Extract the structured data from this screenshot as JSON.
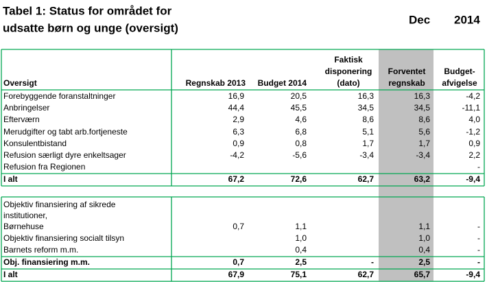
{
  "header": {
    "title": [
      "Tabel 1: Status for området for",
      "udsatte børn og unge (oversigt)"
    ],
    "month": "Dec",
    "year": "2014"
  },
  "table": {
    "columns": [
      [
        "Oversigt"
      ],
      [
        "Regnskab 2013"
      ],
      [
        "Budget 2014"
      ],
      [
        "Faktisk",
        "disponering",
        "(dato)"
      ],
      [
        "Forventet",
        "regnskab"
      ],
      [
        "Budget-",
        "afvigelse"
      ]
    ],
    "sections": [
      {
        "rows": [
          {
            "label": [
              "Forebyggende foranstaltninger"
            ],
            "values": [
              "16,9",
              "20,5",
              "16,3",
              "16,3",
              "-4,2"
            ]
          },
          {
            "label": [
              "Anbringelser"
            ],
            "values": [
              "44,4",
              "45,5",
              "34,5",
              "34,5",
              "-11,1"
            ]
          },
          {
            "label": [
              "Efterværn"
            ],
            "values": [
              "2,9",
              "4,6",
              "8,6",
              "8,6",
              "4,0"
            ]
          },
          {
            "label": [
              "Merudgifter og tabt arb.fortjeneste"
            ],
            "values": [
              "6,3",
              "6,8",
              "5,1",
              "5,6",
              "-1,2"
            ]
          },
          {
            "label": [
              "Konsulentbistand"
            ],
            "values": [
              "0,9",
              "0,8",
              "1,7",
              "1,7",
              "0,9"
            ]
          },
          {
            "label": [
              "Refusion særligt dyre enkeltsager"
            ],
            "values": [
              "-4,2",
              "-5,6",
              "-3,4",
              "-3,4",
              "2,2"
            ]
          },
          {
            "label": [
              "Refusion fra Regionen"
            ],
            "values": [
              null,
              null,
              null,
              null,
              "-"
            ]
          }
        ],
        "total": {
          "label": [
            "I alt"
          ],
          "values": [
            "67,2",
            "72,6",
            "62,7",
            "63,2",
            "-9,4"
          ]
        }
      },
      {
        "rows": [
          {
            "label": [
              "Objektiv finansiering af sikrede",
              "institutioner,",
              "Børnehuse"
            ],
            "values": [
              "0,7",
              "1,1",
              null,
              "1,1",
              "-"
            ]
          },
          {
            "label": [
              "Objektiv finansiering socialt tilsyn"
            ],
            "values": [
              null,
              "1,0",
              null,
              "1,0",
              "-"
            ]
          },
          {
            "label": [
              "Barnets reform m.m."
            ],
            "values": [
              null,
              "0,4",
              null,
              "0,4",
              "-"
            ]
          }
        ],
        "subtotal": {
          "label": [
            "Obj. finansiering m.m."
          ],
          "values": [
            "0,7",
            "2,5",
            "-",
            "2,5",
            "-"
          ]
        },
        "total": {
          "label": [
            "I alt"
          ],
          "values": [
            "67,9",
            "75,1",
            "62,7",
            "65,7",
            "-9,4"
          ]
        }
      }
    ]
  }
}
